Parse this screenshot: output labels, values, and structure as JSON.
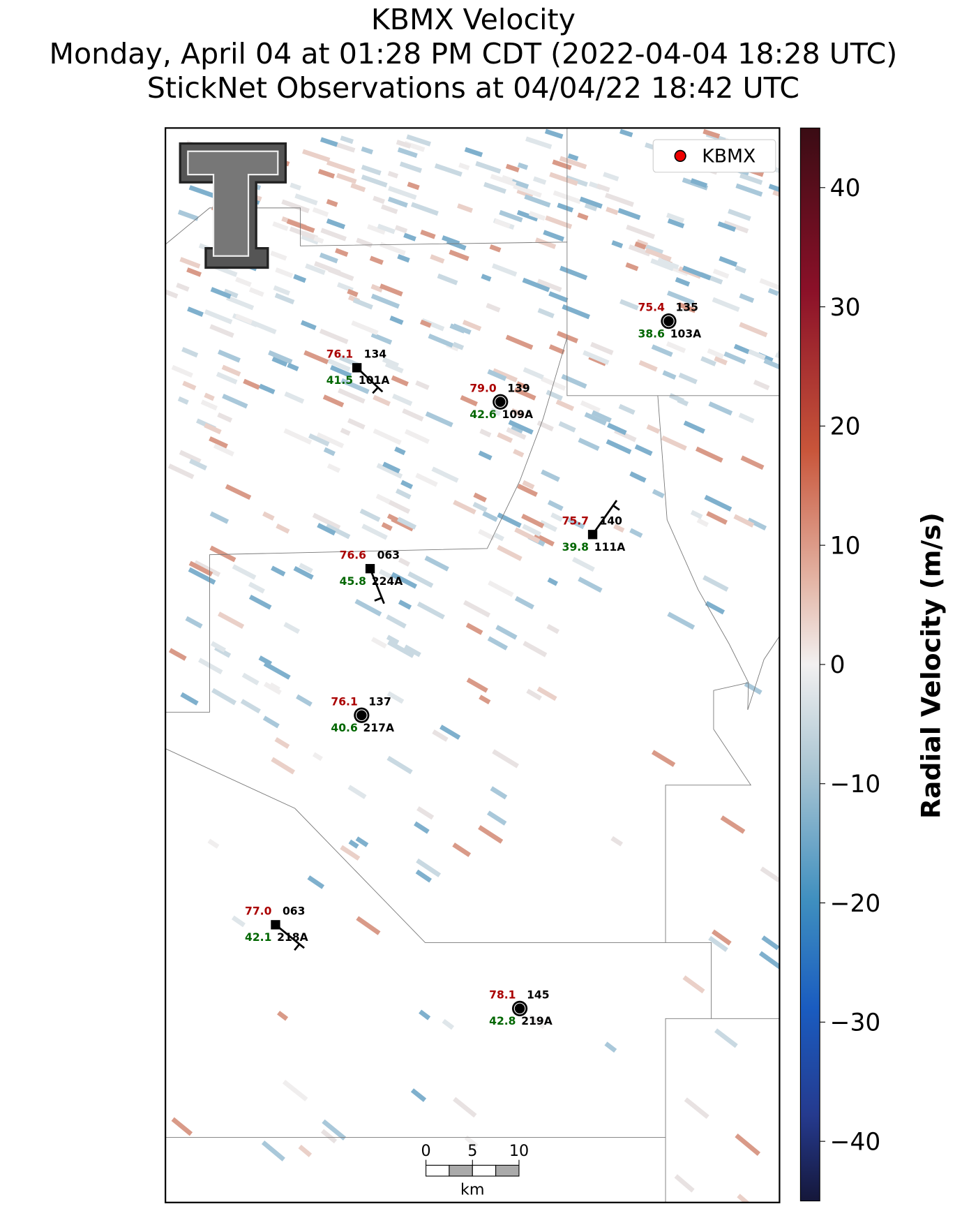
{
  "title": [
    "KBMX Velocity",
    "Monday, April 04 at 01:28 PM CDT (2022-04-04 18:28 UTC)",
    "StickNet Observations at 04/04/22 18:42 UTC"
  ],
  "legend": {
    "label": "KBMX"
  },
  "colorbar": {
    "label": "Radial Velocity (m/s)",
    "lim": [
      -45,
      45
    ],
    "ticks": [
      {
        "value": -40,
        "label": "−40"
      },
      {
        "value": -30,
        "label": "−30"
      },
      {
        "value": -20,
        "label": "−20"
      },
      {
        "value": -10,
        "label": "−10"
      },
      0,
      10,
      20,
      30,
      40
    ]
  },
  "stations": [
    {
      "temperature": 76.1,
      "dewpoint": 41.5,
      "code": "134",
      "id": "101A"
    },
    {
      "temperature": {
        "value": 79,
        "label": "79.0"
      },
      "dewpoint": 42.6,
      "code": "139",
      "id": "109A"
    },
    {
      "temperature": 75.4,
      "dewpoint": 38.6,
      "code": "135",
      "id": "103A"
    },
    {
      "temperature": 75.7,
      "dewpoint": 39.8,
      "code": "140",
      "id": "111A"
    },
    {
      "temperature": 76.6,
      "dewpoint": 45.8,
      "code": "063",
      "id": "224A"
    },
    {
      "temperature": 76.1,
      "dewpoint": 40.6,
      "code": "137",
      "id": "217A"
    },
    {
      "temperature": {
        "value": 77,
        "label": "77.0"
      },
      "dewpoint": 42.1,
      "code": "063",
      "id": "218A"
    },
    {
      "temperature": 78.1,
      "dewpoint": 42.8,
      "code": "145",
      "id": "219A"
    }
  ],
  "scalebar": {
    "ticks": [
      0,
      5,
      10
    ],
    "unit": "km"
  }
}
